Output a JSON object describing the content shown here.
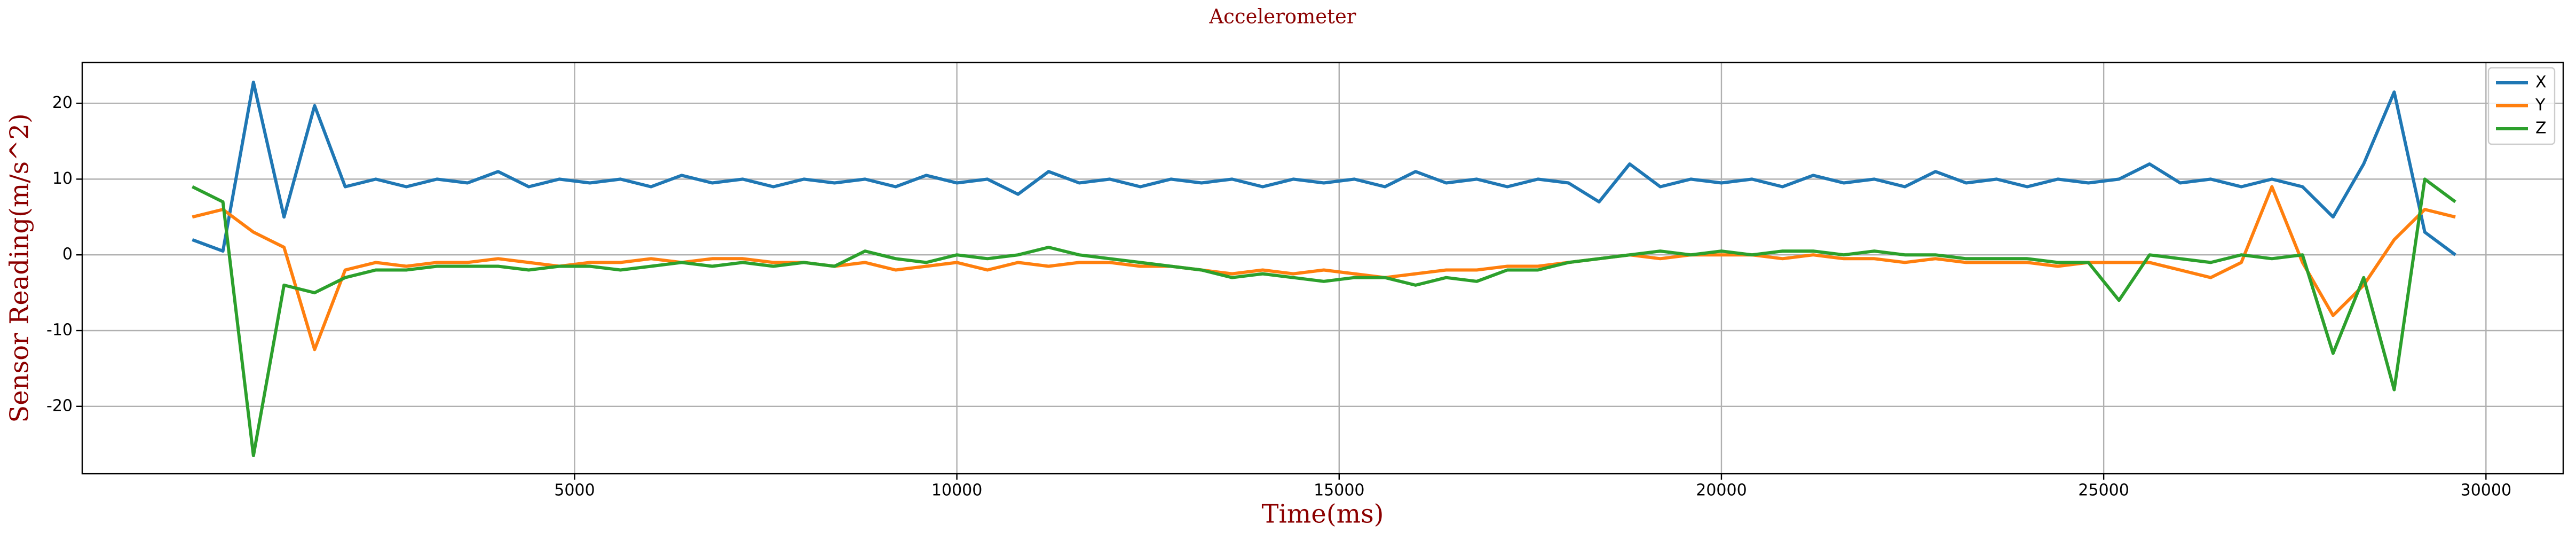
{
  "chart_data": {
    "type": "line",
    "title": "Accelerometer",
    "x_label": "Time(ms)",
    "y_label": "Sensor Reading(m/s^2)",
    "x": [
      0,
      400,
      800,
      1200,
      1600,
      2000,
      2400,
      2800,
      3200,
      3600,
      4000,
      4400,
      4800,
      5200,
      5600,
      6000,
      6400,
      6800,
      7200,
      7600,
      8000,
      8400,
      8800,
      9200,
      9600,
      10000,
      10400,
      10800,
      11200,
      11600,
      12000,
      12400,
      12800,
      13200,
      13600,
      14000,
      14400,
      14800,
      15200,
      15600,
      16000,
      16400,
      16800,
      17200,
      17600,
      18000,
      18400,
      18800,
      19200,
      19600,
      20000,
      20400,
      20800,
      21200,
      21600,
      22000,
      22400,
      22800,
      23200,
      23600,
      24000,
      24400,
      24800,
      25200,
      25600,
      26000,
      26400,
      26800,
      27200,
      27600,
      28000,
      28400,
      28800,
      29200,
      29600
    ],
    "series": [
      {
        "name": "X",
        "color": "#1f77b4",
        "values": [
          2,
          0.5,
          22.8,
          5,
          19.7,
          9,
          10,
          9,
          10,
          9.5,
          11,
          9,
          10,
          9.5,
          10,
          9,
          10.5,
          9.5,
          10,
          9,
          10,
          9.5,
          10,
          9,
          10.5,
          9.5,
          10,
          8,
          11,
          9.5,
          10,
          9,
          10,
          9.5,
          10,
          9,
          10,
          9.5,
          10,
          9,
          11,
          9.5,
          10,
          9,
          10,
          9.5,
          7,
          12,
          9,
          10,
          9.5,
          10,
          9,
          10.5,
          9.5,
          10,
          9,
          11,
          9.5,
          10,
          9,
          10,
          9.5,
          10,
          12,
          9.5,
          10,
          9,
          10,
          9,
          5,
          12,
          21.5,
          3,
          0
        ]
      },
      {
        "name": "Y",
        "color": "#ff7f0e",
        "values": [
          5,
          6,
          3,
          1,
          -12.5,
          -2,
          -1,
          -1.5,
          -1,
          -1,
          -0.5,
          -1,
          -1.5,
          -1,
          -1,
          -0.5,
          -1,
          -0.5,
          -0.5,
          -1,
          -1,
          -1.5,
          -1,
          -2,
          -1.5,
          -1,
          -2,
          -1,
          -1.5,
          -1,
          -1,
          -1.5,
          -1.5,
          -2,
          -2.5,
          -2,
          -2.5,
          -2,
          -2.5,
          -3,
          -2.5,
          -2,
          -2,
          -1.5,
          -1.5,
          -1,
          -0.5,
          0,
          -0.5,
          0,
          0,
          0,
          -0.5,
          0,
          -0.5,
          -0.5,
          -1,
          -0.5,
          -1,
          -1,
          -1,
          -1.5,
          -1,
          -1,
          -1,
          -2,
          -3,
          -1,
          9,
          -1,
          -8,
          -4,
          2,
          6,
          5
        ]
      },
      {
        "name": "Z",
        "color": "#2ca02c",
        "values": [
          9,
          7,
          -26.5,
          -4,
          -5,
          -3,
          -2,
          -2,
          -1.5,
          -1.5,
          -1.5,
          -2,
          -1.5,
          -1.5,
          -2,
          -1.5,
          -1,
          -1.5,
          -1,
          -1.5,
          -1,
          -1.5,
          0.5,
          -0.5,
          -1,
          0,
          -0.5,
          0,
          1,
          0,
          -0.5,
          -1,
          -1.5,
          -2,
          -3,
          -2.5,
          -3,
          -3.5,
          -3,
          -3,
          -4,
          -3,
          -3.5,
          -2,
          -2,
          -1,
          -0.5,
          0,
          0.5,
          0,
          0.5,
          0,
          0.5,
          0.5,
          0,
          0.5,
          0,
          0,
          -0.5,
          -0.5,
          -0.5,
          -1,
          -1,
          -6,
          0,
          -0.5,
          -1,
          0,
          -0.5,
          0,
          -13,
          -3,
          -17.8,
          10,
          7
        ]
      }
    ],
    "xlim": [
      -1440,
      31010
    ],
    "ylim": [
      -28.9,
      25.4
    ],
    "xticks": [
      5000,
      10000,
      15000,
      20000,
      25000,
      30000
    ],
    "yticks": [
      -20,
      -10,
      0,
      10,
      20
    ],
    "grid": true,
    "legend": "upper-right"
  }
}
